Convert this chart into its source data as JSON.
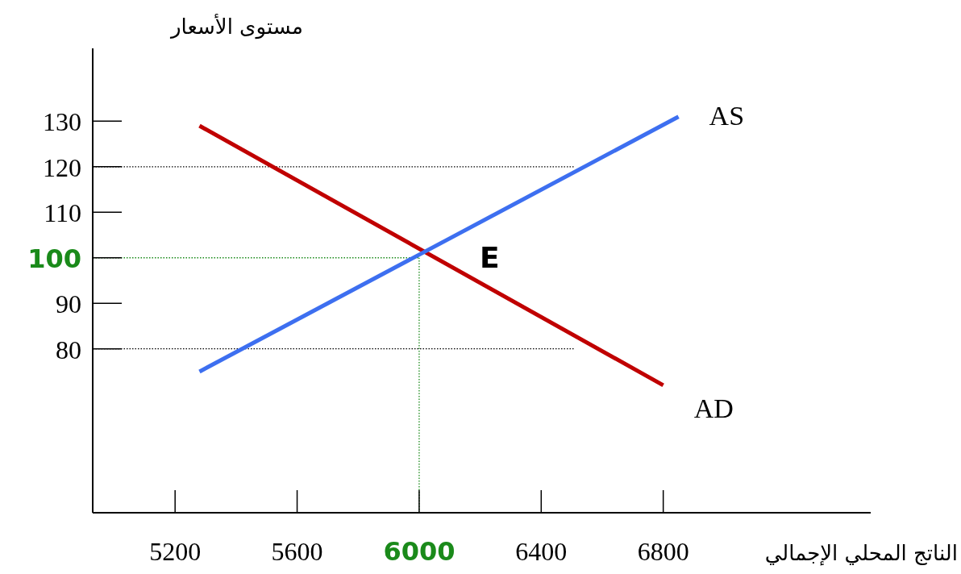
{
  "chart_data": {
    "type": "line",
    "xlabel": "الناتج المحلي الإجمالي",
    "ylabel": "مستوى الأسعار",
    "xlim": [
      4930,
      7480
    ],
    "ylim": [
      44,
      146
    ],
    "xticks": [
      5200,
      5600,
      6000,
      6400,
      6800
    ],
    "yticks": [
      80,
      90,
      100,
      110,
      120,
      130
    ],
    "series": [
      {
        "name": "AD",
        "color": "#c00000",
        "x": [
          5280,
          6800
        ],
        "values": [
          129,
          72
        ]
      },
      {
        "name": "AS",
        "color": "#3d6ff0",
        "x": [
          5280,
          6850
        ],
        "values": [
          75,
          131
        ]
      }
    ],
    "ref_lines": [
      {
        "axis": "y",
        "value": 120,
        "color": "#000000",
        "line_style": "dotted"
      },
      {
        "axis": "y",
        "value": 80,
        "color": "#000000",
        "line_style": "dotted"
      },
      {
        "axis": "y",
        "value": 100,
        "color": "#1a8a1a",
        "line_style": "dotted"
      },
      {
        "axis": "x",
        "value": 6000,
        "color": "#1a8a1a",
        "line_style": "dotted"
      }
    ],
    "annotations": [
      {
        "text": "E",
        "x": 6000,
        "y": 100
      }
    ],
    "line_style": "solid"
  }
}
